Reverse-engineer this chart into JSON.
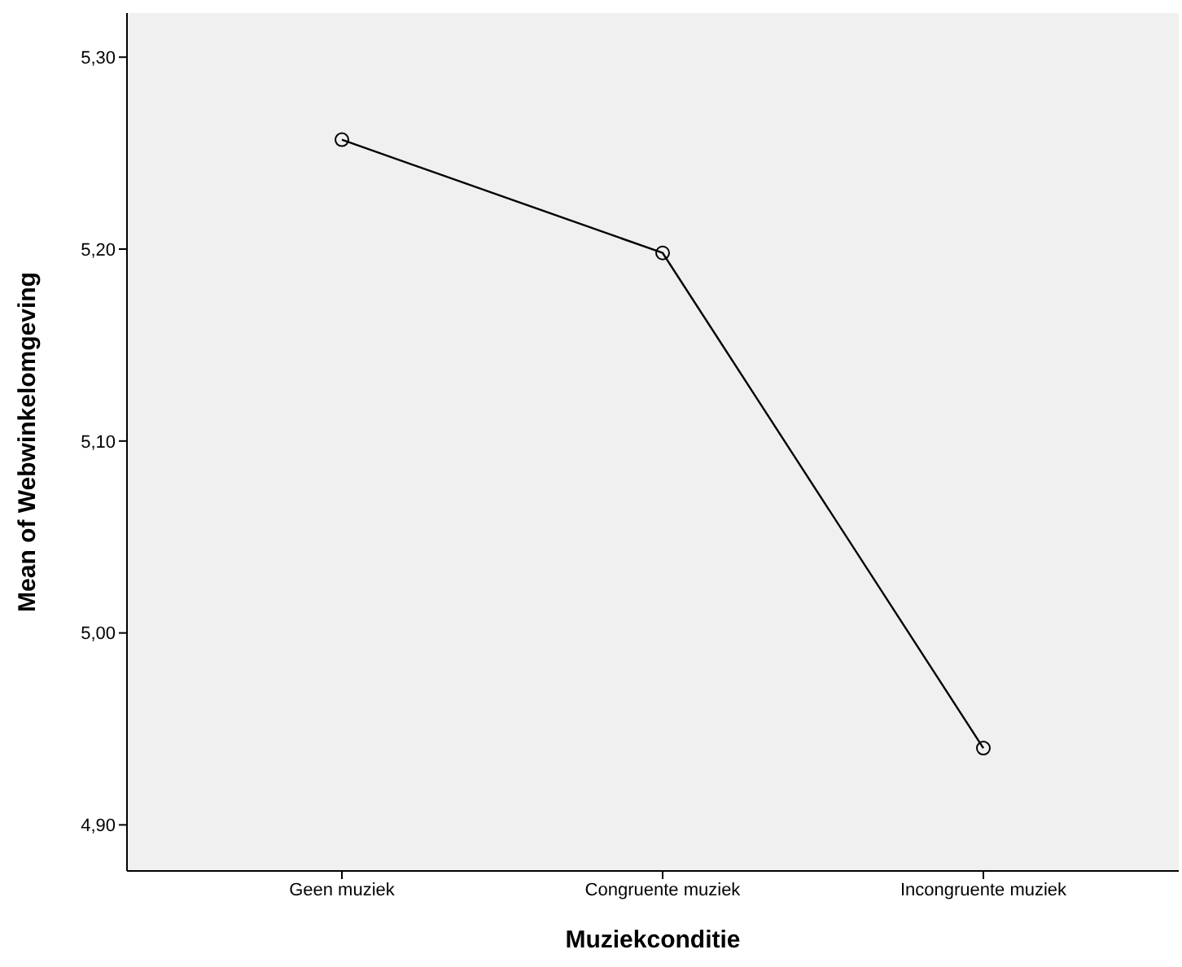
{
  "chart_data": {
    "type": "line",
    "xlabel": "Muziekconditie",
    "ylabel": "Mean of Webwinkelomgeving",
    "categories": [
      "Geen muziek",
      "Congruente muziek",
      "Incongruente muziek"
    ],
    "series": [
      {
        "color": "#000000",
        "values": [
          5.257,
          5.198,
          4.94
        ]
      }
    ],
    "ylim": [
      4.876,
      5.323
    ],
    "yticks": [
      {
        "value": 4.9,
        "label": "4,90"
      },
      {
        "value": 5.0,
        "label": "5,00"
      },
      {
        "value": 5.1,
        "label": "5,10"
      },
      {
        "value": 5.2,
        "label": "5,20"
      },
      {
        "value": 5.3,
        "label": "5,30"
      }
    ],
    "grid": false,
    "legend": false,
    "marker": "circle",
    "line_style": "solid"
  }
}
